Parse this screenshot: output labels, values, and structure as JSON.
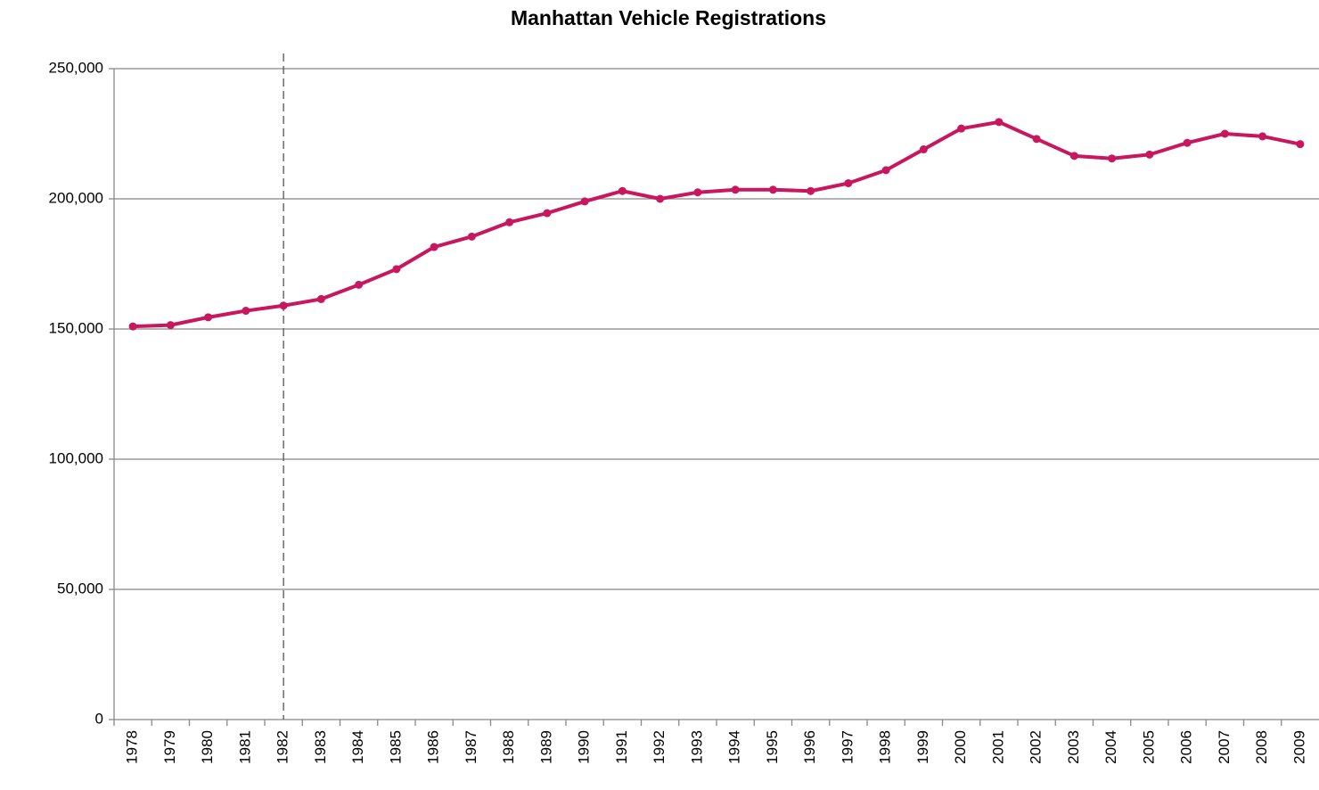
{
  "chart_data": {
    "type": "line",
    "title": "Manhattan Vehicle Registrations",
    "categories": [
      "1978",
      "1979",
      "1980",
      "1981",
      "1982",
      "1983",
      "1984",
      "1985",
      "1986",
      "1987",
      "1988",
      "1989",
      "1990",
      "1991",
      "1992",
      "1993",
      "1994",
      "1995",
      "1996",
      "1997",
      "1998",
      "1999",
      "2000",
      "2001",
      "2002",
      "2003",
      "2004",
      "2005",
      "2006",
      "2007",
      "2008",
      "2009"
    ],
    "series": [
      {
        "name": "Manhattan Vehicle Registrations",
        "color": "#c8175e",
        "values": [
          151000,
          151500,
          154500,
          157000,
          159000,
          161500,
          167000,
          173000,
          181500,
          185500,
          191000,
          194500,
          199000,
          203000,
          200000,
          202500,
          203500,
          203500,
          203000,
          206000,
          211000,
          219000,
          227000,
          229500,
          223000,
          216500,
          215500,
          217000,
          221500,
          225000,
          224000,
          221000
        ]
      }
    ],
    "ylim": [
      0,
      250000
    ],
    "yticks": [
      0,
      {
        "value": 50000,
        "label": "50,000"
      },
      {
        "value": 100000,
        "label": "100,000"
      },
      {
        "value": 150000,
        "label": "150,000"
      },
      {
        "value": 200000,
        "label": "200,000"
      },
      {
        "value": 250000,
        "label": "250,000"
      }
    ],
    "grid": true,
    "marker_category": "1982"
  }
}
